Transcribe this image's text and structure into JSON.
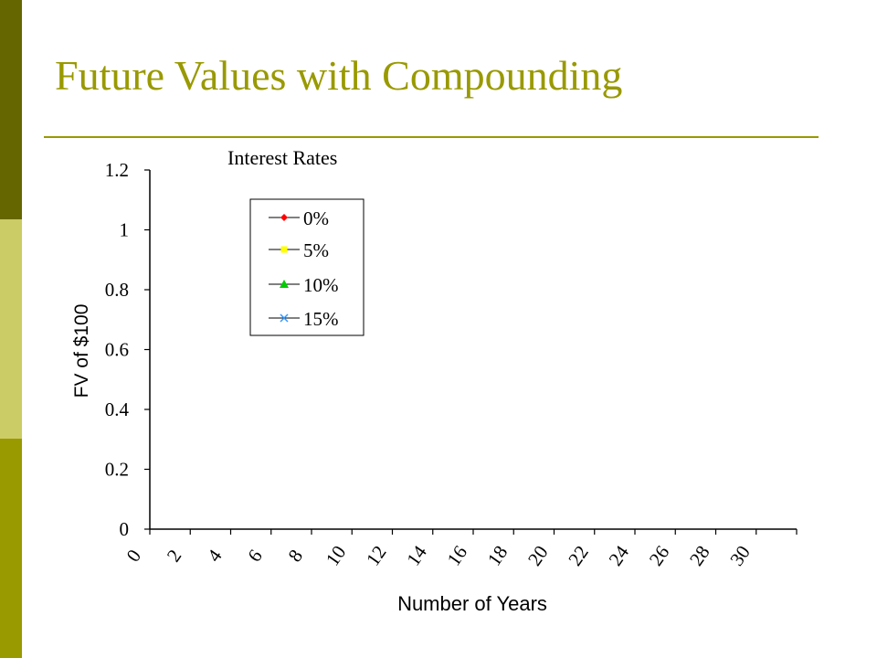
{
  "slide": {
    "title": "Future Values with Compounding",
    "title_color": "#999900",
    "rule_color": "#999900",
    "sidebar_colors": [
      "#666600",
      "#CCCC66",
      "#999900"
    ]
  },
  "chart_data": {
    "type": "line",
    "title": "Interest Rates",
    "xlabel": "Number of Years",
    "ylabel": "FV of $100",
    "xlim": [
      0,
      30
    ],
    "ylim": [
      0,
      1.2
    ],
    "x_ticks": [
      "0",
      "2",
      "4",
      "6",
      "8",
      "10",
      "12",
      "14",
      "16",
      "18",
      "20",
      "22",
      "24",
      "26",
      "28",
      "30"
    ],
    "y_ticks": [
      "0",
      "0.2",
      "0.4",
      "0.6",
      "0.8",
      "1",
      "1.2"
    ],
    "grid": false,
    "legend_position": "top-left",
    "series": [
      {
        "name": "0%",
        "color": "#FF0000",
        "marker": "diamond",
        "values": []
      },
      {
        "name": "5%",
        "color": "#FFFF00",
        "marker": "square",
        "values": []
      },
      {
        "name": "10%",
        "color": "#00CC00",
        "marker": "triangle",
        "values": []
      },
      {
        "name": "15%",
        "color": "#3399FF",
        "marker": "cross",
        "values": []
      }
    ]
  }
}
